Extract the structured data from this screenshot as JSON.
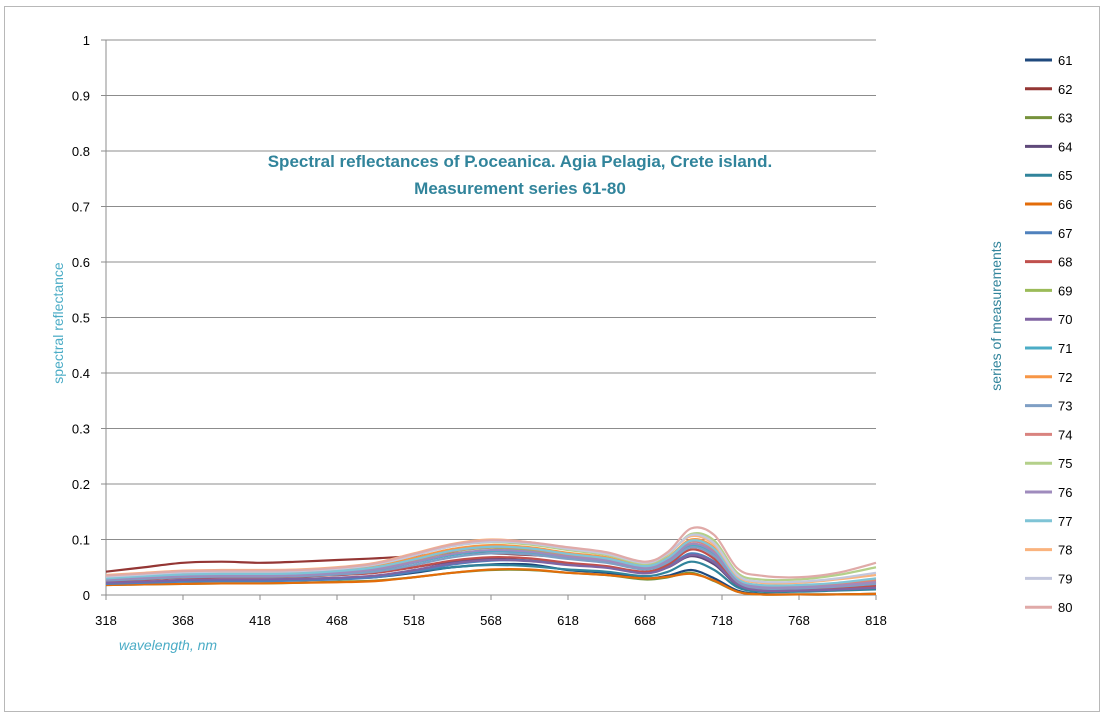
{
  "chart_data": {
    "type": "line",
    "title_line1": "Spectral reflectances of P.oceanica.  Agia  Pelagia, Crete island.",
    "title_line2": "Measurement series 61-80",
    "xlabel": "wavelength, nm",
    "ylabel": "spectral reflectance",
    "legend_title": "series of measurements",
    "legend_position": "right",
    "xlim": [
      318,
      818
    ],
    "ylim": [
      0,
      1
    ],
    "x_ticks": [
      "318",
      "368",
      "418",
      "468",
      "518",
      "568",
      "618",
      "668",
      "718",
      "768",
      "818"
    ],
    "y_ticks": [
      "0",
      "0.1",
      "0.2",
      "0.3",
      "0.4",
      "0.5",
      "0.6",
      "0.7",
      "0.8",
      "0.9",
      "1"
    ],
    "grid": true,
    "x": [
      318,
      343,
      368,
      393,
      418,
      443,
      468,
      493,
      518,
      543,
      568,
      593,
      618,
      643,
      668,
      683,
      698,
      713,
      728,
      743,
      768,
      793,
      818
    ],
    "series": [
      {
        "name": "61",
        "color": "#1f497d",
        "values": [
          0.02,
          0.022,
          0.025,
          0.026,
          0.026,
          0.027,
          0.03,
          0.032,
          0.04,
          0.05,
          0.055,
          0.055,
          0.045,
          0.04,
          0.03,
          0.035,
          0.045,
          0.03,
          0.008,
          0.002,
          0.001,
          0.001,
          0.002
        ]
      },
      {
        "name": "62",
        "color": "#943634",
        "values": [
          0.042,
          0.05,
          0.058,
          0.06,
          0.058,
          0.06,
          0.063,
          0.066,
          0.07,
          0.075,
          0.075,
          0.072,
          0.068,
          0.066,
          0.05,
          0.065,
          0.088,
          0.07,
          0.025,
          0.012,
          0.012,
          0.015,
          0.018
        ]
      },
      {
        "name": "63",
        "color": "#76923c",
        "values": [
          0.018,
          0.019,
          0.02,
          0.021,
          0.021,
          0.022,
          0.024,
          0.026,
          0.032,
          0.04,
          0.045,
          0.045,
          0.04,
          0.036,
          0.028,
          0.032,
          0.04,
          0.025,
          0.006,
          0.001,
          0.001,
          0.001,
          0.002
        ]
      },
      {
        "name": "64",
        "color": "#5f497a",
        "values": [
          0.025,
          0.028,
          0.032,
          0.033,
          0.033,
          0.034,
          0.036,
          0.04,
          0.05,
          0.06,
          0.065,
          0.062,
          0.055,
          0.05,
          0.04,
          0.05,
          0.07,
          0.055,
          0.018,
          0.008,
          0.008,
          0.01,
          0.012
        ]
      },
      {
        "name": "65",
        "color": "#31849b",
        "values": [
          0.022,
          0.024,
          0.027,
          0.028,
          0.028,
          0.029,
          0.031,
          0.034,
          0.042,
          0.05,
          0.054,
          0.052,
          0.046,
          0.042,
          0.034,
          0.042,
          0.06,
          0.045,
          0.014,
          0.006,
          0.006,
          0.008,
          0.01
        ]
      },
      {
        "name": "66",
        "color": "#e36c09",
        "values": [
          0.018,
          0.019,
          0.02,
          0.021,
          0.021,
          0.022,
          0.023,
          0.025,
          0.032,
          0.04,
          0.046,
          0.046,
          0.04,
          0.036,
          0.03,
          0.033,
          0.038,
          0.026,
          0.006,
          0.001,
          0.001,
          0.001,
          0.002
        ]
      },
      {
        "name": "67",
        "color": "#4f81bd",
        "values": [
          0.02,
          0.022,
          0.024,
          0.025,
          0.025,
          0.026,
          0.028,
          0.032,
          0.042,
          0.055,
          0.062,
          0.062,
          0.056,
          0.05,
          0.04,
          0.052,
          0.075,
          0.06,
          0.02,
          0.008,
          0.008,
          0.01,
          0.013
        ]
      },
      {
        "name": "68",
        "color": "#c0504d",
        "values": [
          0.025,
          0.028,
          0.031,
          0.032,
          0.032,
          0.033,
          0.036,
          0.04,
          0.05,
          0.062,
          0.068,
          0.066,
          0.058,
          0.052,
          0.042,
          0.055,
          0.082,
          0.065,
          0.022,
          0.01,
          0.01,
          0.012,
          0.016
        ]
      },
      {
        "name": "69",
        "color": "#9bbb59",
        "values": [
          0.03,
          0.033,
          0.036,
          0.037,
          0.037,
          0.038,
          0.042,
          0.048,
          0.062,
          0.078,
          0.085,
          0.08,
          0.07,
          0.062,
          0.048,
          0.062,
          0.09,
          0.075,
          0.026,
          0.014,
          0.014,
          0.018,
          0.024
        ]
      },
      {
        "name": "70",
        "color": "#8064a2",
        "values": [
          0.022,
          0.024,
          0.027,
          0.028,
          0.028,
          0.029,
          0.031,
          0.035,
          0.045,
          0.057,
          0.063,
          0.061,
          0.054,
          0.049,
          0.039,
          0.05,
          0.072,
          0.058,
          0.019,
          0.008,
          0.008,
          0.01,
          0.013
        ]
      },
      {
        "name": "71",
        "color": "#4bacc6",
        "values": [
          0.028,
          0.031,
          0.034,
          0.035,
          0.035,
          0.036,
          0.04,
          0.045,
          0.058,
          0.072,
          0.079,
          0.076,
          0.067,
          0.06,
          0.047,
          0.06,
          0.088,
          0.072,
          0.025,
          0.013,
          0.013,
          0.016,
          0.022
        ]
      },
      {
        "name": "72",
        "color": "#f79646",
        "values": [
          0.032,
          0.036,
          0.04,
          0.041,
          0.041,
          0.042,
          0.046,
          0.052,
          0.067,
          0.083,
          0.09,
          0.086,
          0.076,
          0.068,
          0.053,
          0.068,
          0.1,
          0.085,
          0.03,
          0.016,
          0.016,
          0.02,
          0.027
        ]
      },
      {
        "name": "73",
        "color": "#7f9fc4",
        "values": [
          0.026,
          0.029,
          0.032,
          0.033,
          0.033,
          0.034,
          0.037,
          0.042,
          0.054,
          0.068,
          0.075,
          0.073,
          0.065,
          0.058,
          0.046,
          0.059,
          0.086,
          0.07,
          0.024,
          0.012,
          0.012,
          0.015,
          0.02
        ]
      },
      {
        "name": "74",
        "color": "#d9837f",
        "values": [
          0.03,
          0.033,
          0.037,
          0.038,
          0.038,
          0.039,
          0.043,
          0.049,
          0.063,
          0.079,
          0.086,
          0.083,
          0.073,
          0.065,
          0.051,
          0.066,
          0.096,
          0.08,
          0.028,
          0.015,
          0.015,
          0.019,
          0.025
        ]
      },
      {
        "name": "75",
        "color": "#b4d08a",
        "values": [
          0.034,
          0.038,
          0.042,
          0.043,
          0.043,
          0.044,
          0.048,
          0.055,
          0.071,
          0.088,
          0.095,
          0.091,
          0.081,
          0.072,
          0.056,
          0.073,
          0.11,
          0.098,
          0.04,
          0.028,
          0.028,
          0.036,
          0.05
        ]
      },
      {
        "name": "76",
        "color": "#9f8bbd",
        "values": [
          0.028,
          0.031,
          0.034,
          0.035,
          0.035,
          0.036,
          0.04,
          0.046,
          0.059,
          0.074,
          0.081,
          0.078,
          0.069,
          0.062,
          0.049,
          0.063,
          0.092,
          0.076,
          0.027,
          0.014,
          0.014,
          0.017,
          0.023
        ]
      },
      {
        "name": "77",
        "color": "#7fc4d6",
        "values": [
          0.03,
          0.034,
          0.037,
          0.038,
          0.038,
          0.039,
          0.043,
          0.05,
          0.064,
          0.08,
          0.087,
          0.084,
          0.074,
          0.066,
          0.052,
          0.067,
          0.098,
          0.083,
          0.03,
          0.018,
          0.018,
          0.022,
          0.03
        ]
      },
      {
        "name": "78",
        "color": "#fab37e",
        "values": [
          0.036,
          0.04,
          0.044,
          0.045,
          0.045,
          0.046,
          0.05,
          0.058,
          0.075,
          0.092,
          0.1,
          0.095,
          0.084,
          0.075,
          0.058,
          0.075,
          0.106,
          0.09,
          0.034,
          0.022,
          0.022,
          0.028,
          0.036
        ]
      },
      {
        "name": "79",
        "color": "#c3c7dd",
        "values": [
          0.033,
          0.037,
          0.041,
          0.042,
          0.042,
          0.043,
          0.047,
          0.055,
          0.071,
          0.088,
          0.096,
          0.093,
          0.083,
          0.074,
          0.058,
          0.075,
          0.108,
          0.093,
          0.036,
          0.024,
          0.024,
          0.03,
          0.04
        ]
      },
      {
        "name": "80",
        "color": "#e0aaa8",
        "values": [
          0.035,
          0.039,
          0.043,
          0.044,
          0.044,
          0.045,
          0.049,
          0.057,
          0.074,
          0.091,
          0.099,
          0.095,
          0.086,
          0.077,
          0.06,
          0.078,
          0.12,
          0.108,
          0.048,
          0.035,
          0.032,
          0.04,
          0.058
        ]
      }
    ]
  }
}
